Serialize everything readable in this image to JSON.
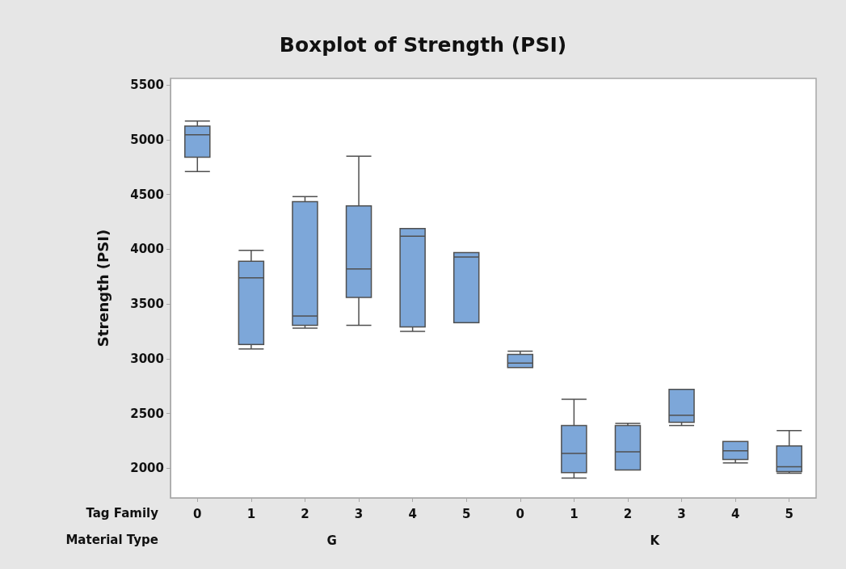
{
  "chart_data": {
    "type": "box",
    "title": "Boxplot of Strength (PSI)",
    "xlabel": "Tag Family",
    "ylabel": "Strength (PSI)",
    "categories": [
      "0",
      "1",
      "2",
      "3",
      "4",
      "5",
      "0",
      "1",
      "2",
      "3",
      "4",
      "5"
    ],
    "annotations": [
      "Material Type",
      "G",
      "K"
    ],
    "color": "#7da7d9",
    "boxes": [
      {
        "low": 4710,
        "q1": 4840,
        "median": 5045,
        "q3": 5125,
        "high": 5170
      },
      {
        "low": 3090,
        "q1": 3130,
        "median": 3740,
        "q3": 3890,
        "high": 3990
      },
      {
        "low": 3280,
        "q1": 3305,
        "median": 3390,
        "q3": 4435,
        "high": 4480
      },
      {
        "low": 3305,
        "q1": 3560,
        "median": 3820,
        "q3": 4395,
        "high": 4850
      },
      {
        "low": 3250,
        "q1": 3290,
        "median": 4120,
        "q3": 4190,
        "high": 4190
      },
      {
        "low": 3330,
        "q1": 3330,
        "median": 3930,
        "q3": 3970,
        "high": 3970
      },
      {
        "low": 2920,
        "q1": 2920,
        "median": 2960,
        "q3": 3040,
        "high": 3070
      },
      {
        "low": 1910,
        "q1": 1960,
        "median": 2135,
        "q3": 2390,
        "high": 2630
      },
      {
        "low": 1985,
        "q1": 1985,
        "median": 2150,
        "q3": 2390,
        "high": 2410
      },
      {
        "low": 2390,
        "q1": 2420,
        "median": 2485,
        "q3": 2720,
        "high": 2720
      },
      {
        "low": 2050,
        "q1": 2080,
        "median": 2160,
        "q3": 2245,
        "high": 2245
      },
      {
        "low": 1955,
        "q1": 1970,
        "median": 2015,
        "q3": 2205,
        "high": 2345
      }
    ],
    "ylim": [
      1730,
      5560
    ],
    "yticks": [
      2000,
      2500,
      3000,
      3500,
      4000,
      4500,
      5000,
      5500
    ]
  }
}
